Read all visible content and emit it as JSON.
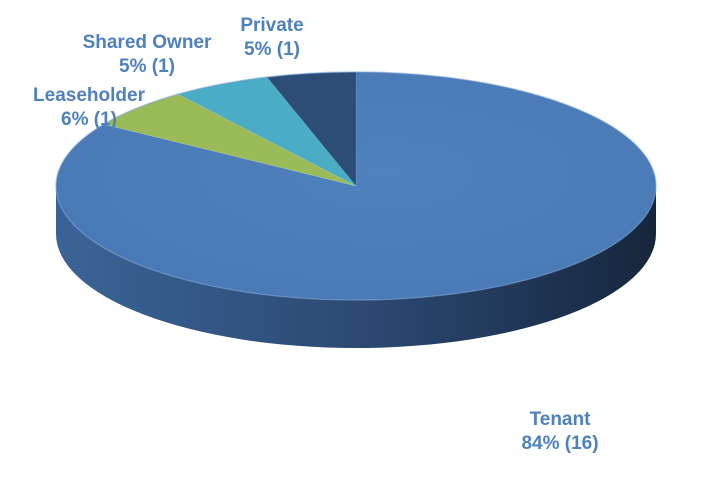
{
  "chart_data": {
    "type": "pie",
    "style": "3d",
    "title": "",
    "slices": [
      {
        "name": "Tenant",
        "percent_label": "84% (16)",
        "count": 16,
        "color": "#4F81BD",
        "side_color": "#2E4E78"
      },
      {
        "name": "Leaseholder",
        "percent_label": "6% (1)",
        "count": 1,
        "color": "#9BBB59",
        "side_color": "#6B8A33"
      },
      {
        "name": "Shared Owner",
        "percent_label": "5% (1)",
        "count": 1,
        "color": "#4BACC6",
        "side_color": "#2B7C92"
      },
      {
        "name": "Private",
        "percent_label": "5% (1)",
        "count": 1,
        "color": "#2C4D75",
        "side_color": "#1A2F49"
      }
    ],
    "fractions": [
      0.841,
      0.058,
      0.053,
      0.048
    ],
    "legend": "none",
    "label_color": "#4F81BD"
  }
}
